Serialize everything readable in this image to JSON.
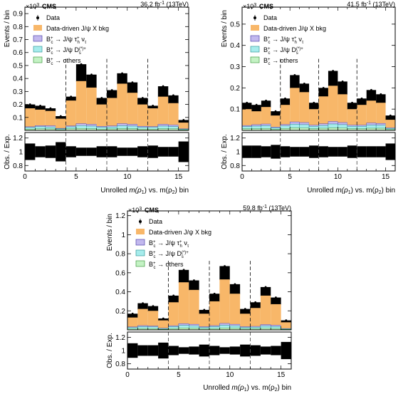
{
  "colors": {
    "bkg": "#f8b769",
    "tau": "#c2b8ee",
    "ds": "#a6ecec",
    "others": "#c4f2c4",
    "data_band": "#000000"
  },
  "legend": {
    "data": "Data",
    "bkg": "Data-driven J/ψ X bkg",
    "tau_main": "B_c^+ → J/ψ τ_h^+ ν_τ",
    "tau_core": "B",
    "tau_sup": "+",
    "tau_sub": "c",
    "tau_rest": "→ J/ψ τ",
    "tau_sup2": "+",
    "tau_sub2": "h",
    "tau_end": "ν",
    "tau_sub3": "τ",
    "ds_core": "B",
    "ds_sup": "+",
    "ds_sub": "c",
    "ds_rest": "→ J/ψ D",
    "ds_sup2": "(*)+",
    "ds_sub2": "s",
    "others_core": "B",
    "others_sup": "+",
    "others_sub": "c",
    "others_rest": "→ others"
  },
  "chart_data": [
    {
      "type": "bar",
      "label": "CMS",
      "exponent_base": "×10",
      "exponent": "3",
      "lumi": "36.2 fb",
      "lumi_sup": "-1",
      "lumi_end": " (13TeV)",
      "ylabel": "Events / bin",
      "ratio_ylabel": "Obs. / Exp.",
      "xlabel_pre": "Unrolled ",
      "xlabel_m1": "m(ρ",
      "xlabel_s1": "1",
      "xlabel_mid": ") vs. m(ρ",
      "xlabel_s2": "2",
      "xlabel_end": ") bin",
      "xlim": [
        0,
        16
      ],
      "ylim": [
        0,
        0.95
      ],
      "yticks": [
        "0.1",
        "0.2",
        "0.3",
        "0.4",
        "0.5",
        "0.6",
        "0.7",
        "0.8",
        "0.9"
      ],
      "ytick_values": [
        0.1,
        0.2,
        0.3,
        0.4,
        0.5,
        0.6,
        0.7,
        0.8,
        0.9
      ],
      "ratio_ylim": [
        0.72,
        1.28
      ],
      "ratio_yticks": [
        "0.8",
        "1",
        "1.2"
      ],
      "ratio_ytick_values": [
        0.8,
        1.0,
        1.2
      ],
      "xticks": [
        "0",
        "5",
        "10",
        "15"
      ],
      "xtick_values": [
        0,
        5,
        10,
        15
      ],
      "dividers": [
        4,
        8,
        12
      ],
      "bkg_top": [
        0.17,
        0.16,
        0.15,
        0.09,
        0.23,
        0.38,
        0.33,
        0.2,
        0.25,
        0.36,
        0.29,
        0.2,
        0.17,
        0.26,
        0.21,
        0.06
      ],
      "data_top": [
        0.2,
        0.19,
        0.17,
        0.11,
        0.26,
        0.51,
        0.43,
        0.25,
        0.31,
        0.44,
        0.37,
        0.25,
        0.19,
        0.34,
        0.27,
        0.08
      ],
      "others": [
        0.01,
        0.012,
        0.011,
        0.005,
        0.012,
        0.015,
        0.013,
        0.01,
        0.011,
        0.014,
        0.013,
        0.01,
        0.01,
        0.013,
        0.012,
        0.004
      ],
      "ds": [
        0.012,
        0.016,
        0.015,
        0.007,
        0.015,
        0.022,
        0.02,
        0.014,
        0.015,
        0.022,
        0.02,
        0.014,
        0.013,
        0.02,
        0.018,
        0.005
      ],
      "tau": [
        0.006,
        0.009,
        0.01,
        0.004,
        0.008,
        0.015,
        0.014,
        0.007,
        0.009,
        0.016,
        0.014,
        0.008,
        0.007,
        0.014,
        0.012,
        0.003
      ],
      "ratio_err": [
        0.12,
        0.08,
        0.09,
        0.14,
        0.08,
        0.06,
        0.06,
        0.08,
        0.08,
        0.06,
        0.06,
        0.08,
        0.09,
        0.07,
        0.07,
        0.15
      ]
    },
    {
      "type": "bar",
      "label": "CMS",
      "exponent_base": "×10",
      "exponent": "3",
      "lumi": "41.5 fb",
      "lumi_sup": "-1",
      "lumi_end": " (13TeV)",
      "ylabel": "Events / bin",
      "ratio_ylabel": "Obs. / Exp.",
      "xlabel_pre": "Unrolled ",
      "xlabel_m1": "m(ρ",
      "xlabel_s1": "1",
      "xlabel_mid": ") vs. m(ρ",
      "xlabel_s2": "2",
      "xlabel_end": ") bin",
      "xlim": [
        0,
        16
      ],
      "ylim": [
        0,
        0.58
      ],
      "yticks": [
        "0.1",
        "0.2",
        "0.3",
        "0.4",
        "0.5"
      ],
      "ytick_values": [
        0.1,
        0.2,
        0.3,
        0.4,
        0.5
      ],
      "ratio_ylim": [
        0.72,
        1.28
      ],
      "ratio_yticks": [
        "0.8",
        "1",
        "1.2"
      ],
      "ratio_ytick_values": [
        0.8,
        1.0,
        1.2
      ],
      "xticks": [
        "0",
        "5",
        "10",
        "15"
      ],
      "xtick_values": [
        0,
        5,
        10,
        15
      ],
      "dividers": [
        4,
        8,
        12
      ],
      "bkg_top": [
        0.1,
        0.09,
        0.11,
        0.07,
        0.12,
        0.2,
        0.18,
        0.1,
        0.16,
        0.21,
        0.17,
        0.1,
        0.12,
        0.14,
        0.13,
        0.05
      ],
      "data_top": [
        0.13,
        0.12,
        0.14,
        0.09,
        0.15,
        0.26,
        0.22,
        0.13,
        0.2,
        0.28,
        0.23,
        0.13,
        0.15,
        0.19,
        0.17,
        0.07
      ],
      "others": [
        0.008,
        0.008,
        0.009,
        0.005,
        0.009,
        0.012,
        0.011,
        0.008,
        0.01,
        0.012,
        0.011,
        0.008,
        0.008,
        0.01,
        0.01,
        0.004
      ],
      "ds": [
        0.01,
        0.012,
        0.013,
        0.007,
        0.012,
        0.017,
        0.016,
        0.011,
        0.013,
        0.018,
        0.016,
        0.011,
        0.011,
        0.015,
        0.014,
        0.005
      ],
      "tau": [
        0.005,
        0.007,
        0.008,
        0.004,
        0.007,
        0.011,
        0.01,
        0.006,
        0.008,
        0.012,
        0.01,
        0.006,
        0.006,
        0.01,
        0.009,
        0.003
      ],
      "ratio_err": [
        0.09,
        0.09,
        0.08,
        0.1,
        0.08,
        0.07,
        0.07,
        0.09,
        0.08,
        0.07,
        0.07,
        0.09,
        0.08,
        0.08,
        0.08,
        0.12
      ]
    },
    {
      "type": "bar",
      "label": "CMS",
      "exponent_base": "×10",
      "exponent": "3",
      "lumi": "59.8 fb",
      "lumi_sup": "-1",
      "lumi_end": " (13TeV)",
      "ylabel": "Events / bin",
      "ratio_ylabel": "Obs. / Exp.",
      "xlabel_pre": "Unrolled ",
      "xlabel_m1": "m(ρ",
      "xlabel_s1": "1",
      "xlabel_mid": ") vs. m(ρ",
      "xlabel_s2": "2",
      "xlabel_end": ") bin",
      "xlim": [
        0,
        16
      ],
      "ylim": [
        0,
        1.25
      ],
      "yticks": [
        "0.2",
        "0.4",
        "0.6",
        "0.8",
        "1",
        "1.2"
      ],
      "ytick_values": [
        0.2,
        0.4,
        0.6,
        0.8,
        1.0,
        1.2
      ],
      "ratio_ylim": [
        0.72,
        1.28
      ],
      "ratio_yticks": [
        "0.8",
        "1",
        "1.2"
      ],
      "ratio_ytick_values": [
        0.8,
        1.0,
        1.2
      ],
      "xticks": [
        "0",
        "5",
        "10",
        "15"
      ],
      "xtick_values": [
        0,
        5,
        10,
        15
      ],
      "dividers": [
        4,
        8,
        12
      ],
      "bkg_top": [
        0.13,
        0.22,
        0.2,
        0.1,
        0.29,
        0.5,
        0.42,
        0.17,
        0.3,
        0.53,
        0.38,
        0.17,
        0.23,
        0.36,
        0.27,
        0.08
      ],
      "data_top": [
        0.17,
        0.28,
        0.25,
        0.12,
        0.36,
        0.63,
        0.52,
        0.21,
        0.38,
        0.67,
        0.48,
        0.22,
        0.29,
        0.45,
        0.34,
        0.1
      ],
      "others": [
        0.01,
        0.014,
        0.013,
        0.006,
        0.014,
        0.02,
        0.018,
        0.011,
        0.014,
        0.02,
        0.018,
        0.011,
        0.012,
        0.017,
        0.015,
        0.005
      ],
      "ds": [
        0.014,
        0.02,
        0.018,
        0.008,
        0.02,
        0.028,
        0.025,
        0.015,
        0.02,
        0.029,
        0.025,
        0.015,
        0.016,
        0.024,
        0.021,
        0.006
      ],
      "tau": [
        0.007,
        0.011,
        0.01,
        0.004,
        0.01,
        0.018,
        0.016,
        0.008,
        0.011,
        0.019,
        0.016,
        0.008,
        0.009,
        0.015,
        0.013,
        0.003
      ],
      "ratio_err": [
        0.11,
        0.08,
        0.08,
        0.12,
        0.07,
        0.05,
        0.06,
        0.09,
        0.07,
        0.05,
        0.06,
        0.09,
        0.08,
        0.06,
        0.07,
        0.13
      ]
    }
  ]
}
